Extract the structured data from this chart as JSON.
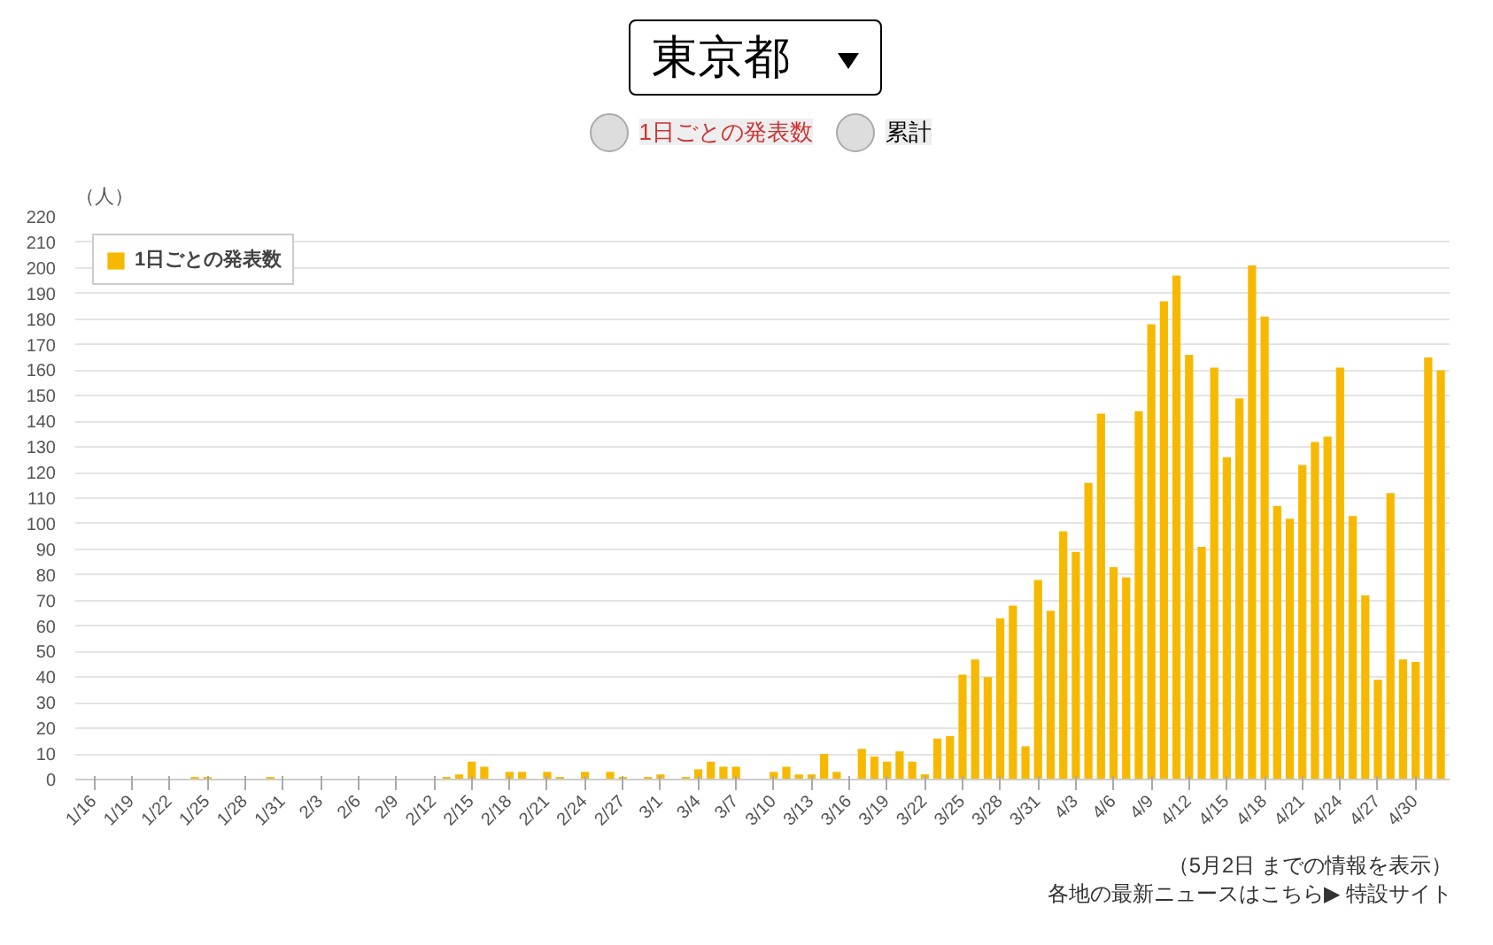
{
  "chart_data": {
    "type": "bar",
    "title": "東京都",
    "ylabel": "（人）",
    "categories": [
      "1/16",
      null,
      null,
      "1/19",
      null,
      null,
      "1/22",
      null,
      null,
      "1/25",
      null,
      null,
      "1/28",
      null,
      null,
      "1/31",
      null,
      null,
      "2/3",
      null,
      null,
      "2/6",
      null,
      null,
      "2/9",
      null,
      null,
      "2/12",
      null,
      null,
      "2/15",
      null,
      null,
      "2/18",
      null,
      null,
      "2/21",
      null,
      null,
      "2/24",
      null,
      null,
      "2/27",
      null,
      null,
      "3/1",
      null,
      null,
      "3/4",
      null,
      null,
      "3/7",
      null,
      null,
      "3/10",
      null,
      null,
      "3/13",
      null,
      null,
      "3/16",
      null,
      null,
      "3/19",
      null,
      null,
      "3/22",
      null,
      null,
      "3/25",
      null,
      null,
      "3/28",
      null,
      null,
      "3/31",
      null,
      null,
      "4/3",
      null,
      null,
      "4/6",
      null,
      null,
      "4/9",
      null,
      null,
      "4/12",
      null,
      null,
      "4/15",
      null,
      null,
      "4/18",
      null,
      null,
      "4/21",
      null,
      null,
      "4/24",
      null,
      null,
      "4/27",
      null,
      null,
      "4/30",
      null,
      null
    ],
    "series": [
      {
        "name": "1日ごとの発表数",
        "color": "#f7b900",
        "values": [
          0,
          0,
          0,
          0,
          0,
          0,
          0,
          0,
          1,
          1,
          0,
          0,
          0,
          0,
          1,
          0,
          0,
          0,
          0,
          0,
          0,
          0,
          0,
          0,
          0,
          0,
          0,
          0,
          1,
          2,
          7,
          5,
          0,
          3,
          3,
          0,
          3,
          1,
          0,
          3,
          0,
          3,
          1,
          0,
          1,
          2,
          0,
          1,
          4,
          7,
          5,
          5,
          0,
          0,
          3,
          5,
          2,
          2,
          10,
          3,
          0,
          12,
          9,
          7,
          11,
          7,
          2,
          16,
          17,
          41,
          47,
          40,
          63,
          68,
          13,
          78,
          66,
          97,
          89,
          116,
          143,
          83,
          79,
          144,
          178,
          187,
          197,
          166,
          91,
          161,
          126,
          149,
          201,
          181,
          107,
          102,
          123,
          132,
          134,
          161,
          103,
          72,
          39,
          112,
          47,
          46,
          165,
          160
        ]
      }
    ],
    "ylim": [
      0,
      220
    ],
    "yticks": [
      0,
      10,
      20,
      30,
      40,
      50,
      60,
      70,
      80,
      90,
      100,
      110,
      120,
      130,
      140,
      150,
      160,
      170,
      180,
      190,
      200,
      210,
      220
    ],
    "grid": "y",
    "legend": "top left",
    "annotations": [
      "1日ごとの発表数",
      "累計",
      "（5月2日 までの情報を表示）",
      "各地の最新ニュースはこちら▶ 特設サイト"
    ]
  }
}
